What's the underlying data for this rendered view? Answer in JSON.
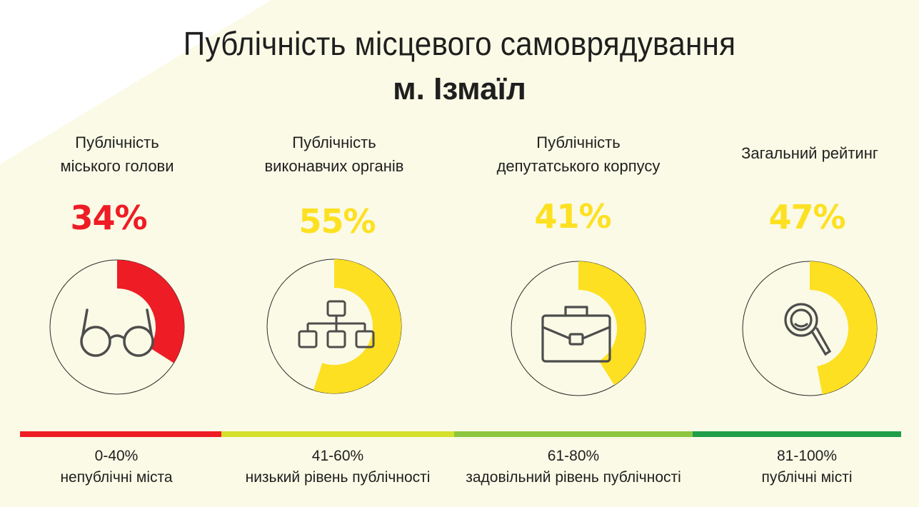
{
  "header": {
    "title": "Публічність місцевого самоврядування",
    "subtitle": "м. Ізмаїл"
  },
  "chart_data": {
    "type": "donut",
    "series": [
      {
        "label_line1": "Публічність",
        "label_line2": "міського голови",
        "value": 34,
        "value_label": "34%",
        "color": "#ee1c25",
        "icon": "glasses-icon"
      },
      {
        "label_line1": "Публічність",
        "label_line2": "виконавчих органів",
        "value": 55,
        "value_label": "55%",
        "color": "#fde021",
        "icon": "org-chart-icon"
      },
      {
        "label_line1": "Публічність",
        "label_line2": "депутатського корпусу",
        "value": 41,
        "value_label": "41%",
        "color": "#fde021",
        "icon": "briefcase-icon"
      },
      {
        "label_line1": "",
        "label_line2": "Загальний рейтинг",
        "value": 47,
        "value_label": "47%",
        "color": "#fde021",
        "icon": "magnifier-icon"
      }
    ],
    "ylim": [
      0,
      100
    ]
  },
  "scale": [
    {
      "range": "0-40%",
      "desc": "непублічні міста",
      "color": "#ee1c25"
    },
    {
      "range": "41-60%",
      "desc": "низький рівень публічності",
      "color": "#d4e02a"
    },
    {
      "range": "61-80%",
      "desc": "задовільний рівень публічності",
      "color": "#8dc63f"
    },
    {
      "range": "81-100%",
      "desc": "публічні місті",
      "color": "#1f9e4a"
    }
  ],
  "colors": {
    "background_band": "#fafae6",
    "ring_outline": "#2b2b2b",
    "icon_stroke": "#4d4d4d"
  }
}
